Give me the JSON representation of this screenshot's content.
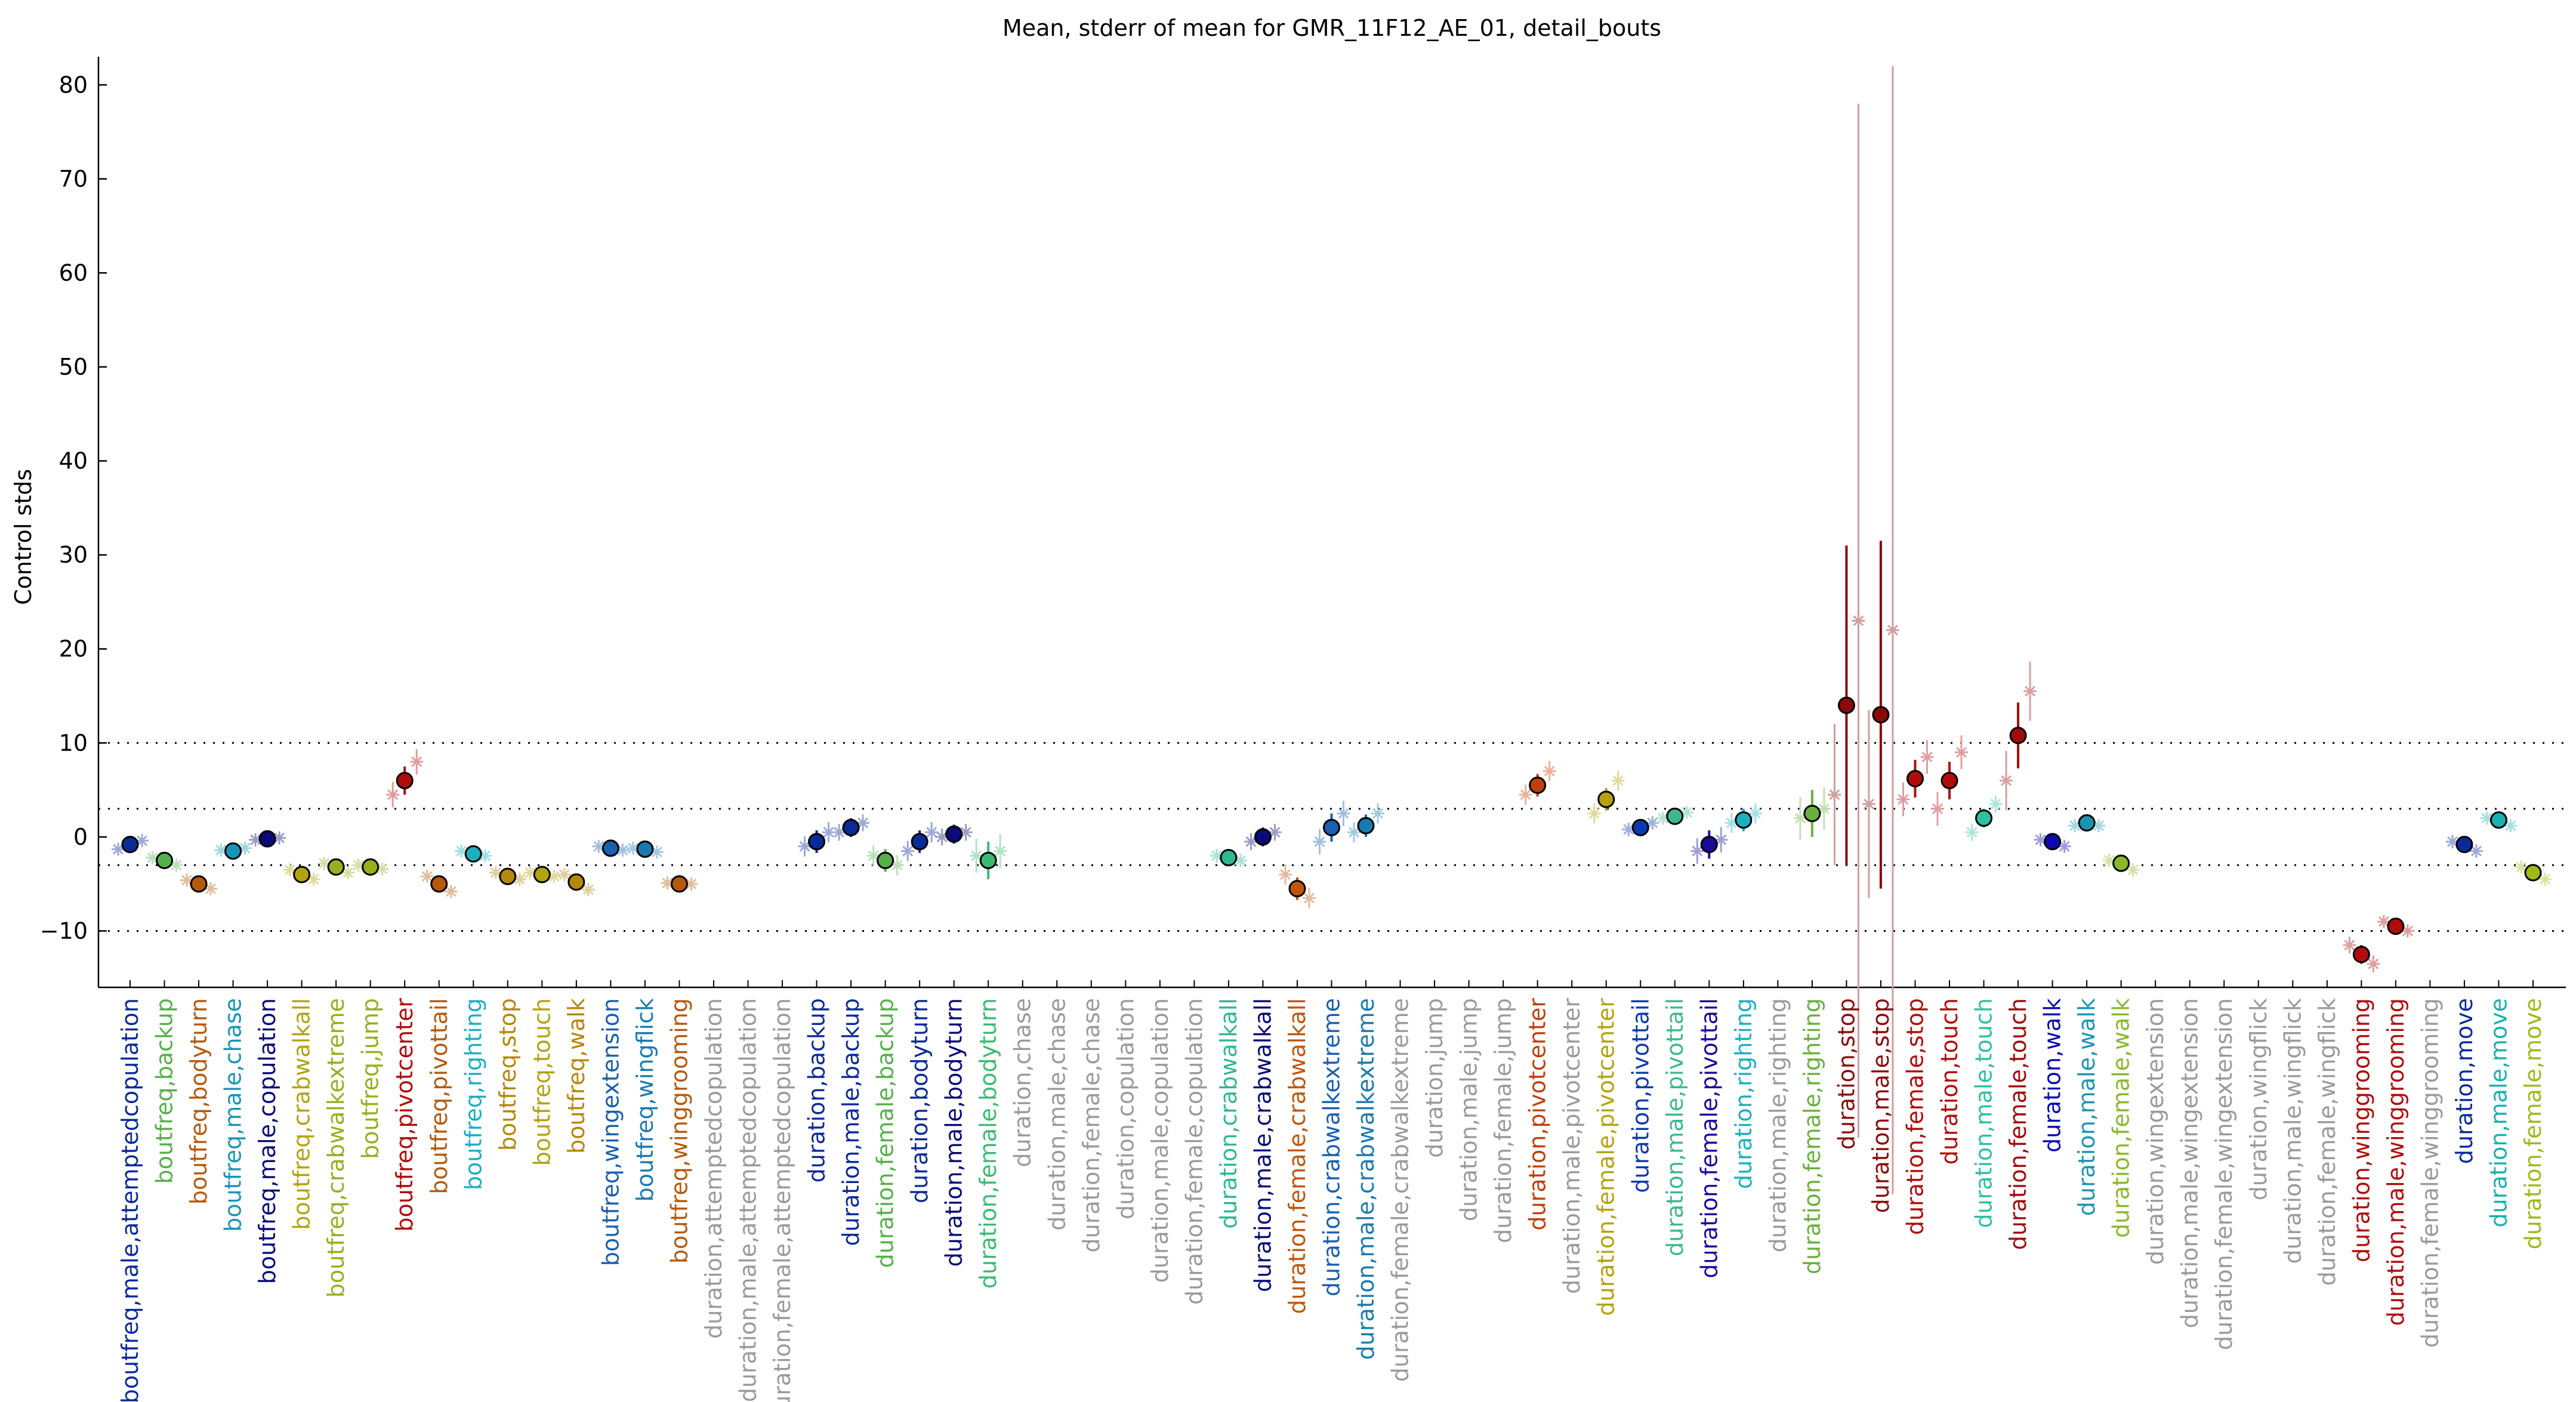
{
  "chart_data": {
    "type": "scatter",
    "title": "Mean, stderr of mean for GMR_11F12_AE_01, detail_bouts",
    "ylabel": "Control stds",
    "xlabel": "",
    "ylim": [
      -16,
      83
    ],
    "yticks": [
      -10,
      0,
      10,
      20,
      30,
      40,
      50,
      60,
      70,
      80
    ],
    "ytick_labels": [
      "−10",
      "0",
      "10",
      "20",
      "30",
      "40",
      "50",
      "60",
      "70",
      "80"
    ],
    "reference_lines": [
      -10,
      -3,
      3,
      10
    ],
    "grid": false,
    "categories": [
      {
        "label": "boutfreq,male,attemptedcopulation",
        "color": "#0b2a9a",
        "value": -0.8,
        "err": 0.5,
        "secondary": [
          -1.3,
          -0.4
        ]
      },
      {
        "label": "boutfreq,backup",
        "color": "#56b04a",
        "value": -2.5,
        "err": 0.5,
        "secondary": [
          -2.2,
          -3.0
        ]
      },
      {
        "label": "boutfreq,bodyturn",
        "color": "#b5590b",
        "value": -5.0,
        "err": 0.5,
        "secondary": [
          -4.6,
          -5.5
        ]
      },
      {
        "label": "boutfreq,male,chase",
        "color": "#1795b8",
        "value": -1.5,
        "err": 0.4,
        "secondary": [
          -1.4,
          -1.2
        ]
      },
      {
        "label": "boutfreq,male,copulation",
        "color": "#0a0a78",
        "value": -0.2,
        "err": 0.4,
        "secondary": [
          -0.3,
          -0.1
        ]
      },
      {
        "label": "boutfreq,crabwalkall",
        "color": "#b3a30f",
        "value": -4.0,
        "err": 0.5,
        "secondary": [
          -3.5,
          -4.5
        ]
      },
      {
        "label": "boutfreq,crabwalkextreme",
        "color": "#9aad1f",
        "value": -3.2,
        "err": 0.5,
        "secondary": [
          -2.8,
          -3.8
        ]
      },
      {
        "label": "boutfreq,jump",
        "color": "#9aad1f",
        "value": -3.2,
        "err": 0.4,
        "secondary": [
          -3.0,
          -3.4
        ]
      },
      {
        "label": "boutfreq,pivotcenter",
        "color": "#b00c0c",
        "value": 6.0,
        "err": 1.5,
        "secondary": [
          4.5,
          8.0
        ]
      },
      {
        "label": "boutfreq,pivottail",
        "color": "#b5590b",
        "value": -5.0,
        "err": 0.6,
        "secondary": [
          -4.2,
          -5.8
        ]
      },
      {
        "label": "boutfreq,righting",
        "color": "#1ab0c0",
        "value": -1.8,
        "err": 0.4,
        "secondary": [
          -1.5,
          -2.0
        ]
      },
      {
        "label": "boutfreq,stop",
        "color": "#b5870b",
        "value": -4.2,
        "err": 0.5,
        "secondary": [
          -3.8,
          -4.5
        ]
      },
      {
        "label": "boutfreq,touch",
        "color": "#b3a30f",
        "value": -4.0,
        "err": 0.4,
        "secondary": [
          -3.8,
          -4.2
        ]
      },
      {
        "label": "boutfreq,walk",
        "color": "#b5870b",
        "value": -4.8,
        "err": 0.6,
        "secondary": [
          -4.0,
          -5.6
        ]
      },
      {
        "label": "boutfreq,wingextension",
        "color": "#1a5fb0",
        "value": -1.2,
        "err": 0.4,
        "secondary": [
          -1.0,
          -1.4
        ]
      },
      {
        "label": "boutfreq,wingflick",
        "color": "#1a7ab0",
        "value": -1.3,
        "err": 0.4,
        "secondary": [
          -1.2,
          -1.6
        ]
      },
      {
        "label": "boutfreq,winggrooming",
        "color": "#b5590b",
        "value": -5.0,
        "err": 0.4,
        "secondary": [
          -4.9,
          -5.0
        ]
      },
      {
        "label": "duration,attemptedcopulation",
        "color": "#9a9a9a",
        "value": null
      },
      {
        "label": "duration,male,attemptedcopulation",
        "color": "#9a9a9a",
        "value": null
      },
      {
        "label": "duration,female,attemptedcopulation",
        "color": "#9a9a9a",
        "value": null
      },
      {
        "label": "duration,backup",
        "color": "#0b2a9a",
        "value": -0.5,
        "err": 1.2,
        "secondary": [
          -1.0,
          0.5
        ]
      },
      {
        "label": "duration,male,backup",
        "color": "#0b2a9a",
        "value": 1.0,
        "err": 1.0,
        "secondary": [
          0.5,
          1.5
        ]
      },
      {
        "label": "duration,female,backup",
        "color": "#56b04a",
        "value": -2.5,
        "err": 1.2,
        "secondary": [
          -2.0,
          -3.0
        ]
      },
      {
        "label": "duration,bodyturn",
        "color": "#0b2a9a",
        "value": -0.5,
        "err": 1.2,
        "secondary": [
          -1.5,
          0.5
        ]
      },
      {
        "label": "duration,male,bodyturn",
        "color": "#0a0a78",
        "value": 0.3,
        "err": 1.0,
        "secondary": [
          0.0,
          0.5
        ]
      },
      {
        "label": "duration,female,bodyturn",
        "color": "#3cba74",
        "value": -2.5,
        "err": 2.0,
        "secondary": [
          -2.0,
          -1.5
        ]
      },
      {
        "label": "duration,chase",
        "color": "#9a9a9a",
        "value": null
      },
      {
        "label": "duration,male,chase",
        "color": "#9a9a9a",
        "value": null
      },
      {
        "label": "duration,female,chase",
        "color": "#9a9a9a",
        "value": null
      },
      {
        "label": "duration,copulation",
        "color": "#9a9a9a",
        "value": null
      },
      {
        "label": "duration,male,copulation",
        "color": "#9a9a9a",
        "value": null
      },
      {
        "label": "duration,female,copulation",
        "color": "#9a9a9a",
        "value": null
      },
      {
        "label": "duration,crabwalkall",
        "color": "#2fb892",
        "value": -2.2,
        "err": 0.8,
        "secondary": [
          -2.0,
          -2.5
        ]
      },
      {
        "label": "duration,male,crabwalkall",
        "color": "#0a0a78",
        "value": 0.0,
        "err": 1.0,
        "secondary": [
          -0.5,
          0.5
        ]
      },
      {
        "label": "duration,female,crabwalkall",
        "color": "#c0560b",
        "value": -5.5,
        "err": 1.2,
        "secondary": [
          -4.0,
          -6.5
        ]
      },
      {
        "label": "duration,crabwalkextreme",
        "color": "#1a5fb0",
        "value": 1.0,
        "err": 1.5,
        "secondary": [
          -0.5,
          2.5
        ]
      },
      {
        "label": "duration,male,crabwalkextreme",
        "color": "#1a7ab0",
        "value": 1.2,
        "err": 1.2,
        "secondary": [
          0.5,
          2.5
        ]
      },
      {
        "label": "duration,female,crabwalkextreme",
        "color": "#9a9a9a",
        "value": null
      },
      {
        "label": "duration,jump",
        "color": "#9a9a9a",
        "value": null
      },
      {
        "label": "duration,male,jump",
        "color": "#9a9a9a",
        "value": null
      },
      {
        "label": "duration,female,jump",
        "color": "#9a9a9a",
        "value": null
      },
      {
        "label": "duration,pivotcenter",
        "color": "#c0400b",
        "value": 5.5,
        "err": 1.2,
        "secondary": [
          4.5,
          7.0
        ]
      },
      {
        "label": "duration,male,pivotcenter",
        "color": "#9a9a9a",
        "value": null
      },
      {
        "label": "duration,female,pivotcenter",
        "color": "#b5a30b",
        "value": 4.0,
        "err": 1.2,
        "secondary": [
          2.5,
          6.0
        ]
      },
      {
        "label": "duration,pivottail",
        "color": "#0b3ab0",
        "value": 1.0,
        "err": 0.8,
        "secondary": [
          0.8,
          1.5
        ]
      },
      {
        "label": "duration,male,pivottail",
        "color": "#3cb890",
        "value": 2.2,
        "err": 0.6,
        "secondary": [
          2.0,
          2.6
        ]
      },
      {
        "label": "duration,female,pivottail",
        "color": "#1a0a9a",
        "value": -0.8,
        "err": 1.5,
        "secondary": [
          -1.5,
          -0.3
        ]
      },
      {
        "label": "duration,righting",
        "color": "#1ab0c0",
        "value": 1.8,
        "err": 1.2,
        "secondary": [
          1.5,
          2.5
        ]
      },
      {
        "label": "duration,male,righting",
        "color": "#9a9a9a",
        "value": null
      },
      {
        "label": "duration,female,righting",
        "color": "#6ab03c",
        "value": 2.5,
        "err": 2.5,
        "secondary": [
          2.0,
          3.0
        ]
      },
      {
        "label": "duration,stop",
        "color": "#8a0a0a",
        "value": 14.0,
        "err": 17.0,
        "secondary": [
          4.5,
          23.0
        ],
        "secondary_err": [
          7.5,
          55.0
        ]
      },
      {
        "label": "duration,male,stop",
        "color": "#8a0a0a",
        "value": 13.0,
        "err": 18.5,
        "secondary": [
          3.5,
          22.0
        ],
        "secondary_err": [
          10.0,
          60.0
        ]
      },
      {
        "label": "duration,female,stop",
        "color": "#b00c0c",
        "value": 6.2,
        "err": 2.0,
        "secondary": [
          4.0,
          8.5
        ]
      },
      {
        "label": "duration,touch",
        "color": "#b00c0c",
        "value": 6.0,
        "err": 2.0,
        "secondary": [
          3.0,
          9.0
        ]
      },
      {
        "label": "duration,male,touch",
        "color": "#2fc0a0",
        "value": 2.0,
        "err": 1.0,
        "secondary": [
          0.5,
          3.5
        ]
      },
      {
        "label": "duration,female,touch",
        "color": "#a00c0c",
        "value": 10.8,
        "err": 3.5,
        "secondary": [
          6.0,
          15.5
        ]
      },
      {
        "label": "duration,walk",
        "color": "#0b0ab0",
        "value": -0.5,
        "err": 0.5,
        "secondary": [
          -0.3,
          -1.0
        ]
      },
      {
        "label": "duration,male,walk",
        "color": "#1a95b0",
        "value": 1.5,
        "err": 0.5,
        "secondary": [
          1.2,
          1.2
        ]
      },
      {
        "label": "duration,female,walk",
        "color": "#8ab82a",
        "value": -2.8,
        "err": 0.8,
        "secondary": [
          -2.5,
          -3.5
        ]
      },
      {
        "label": "duration,wingextension",
        "color": "#9a9a9a",
        "value": null
      },
      {
        "label": "duration,male,wingextension",
        "color": "#9a9a9a",
        "value": null
      },
      {
        "label": "duration,female,wingextension",
        "color": "#9a9a9a",
        "value": null
      },
      {
        "label": "duration,wingflick",
        "color": "#9a9a9a",
        "value": null
      },
      {
        "label": "duration,male,wingflick",
        "color": "#9a9a9a",
        "value": null
      },
      {
        "label": "duration,female,wingflick",
        "color": "#9a9a9a",
        "value": null
      },
      {
        "label": "duration,winggrooming",
        "color": "#b00c0c",
        "value": -12.5,
        "err": 1.0,
        "secondary": [
          -11.5,
          -13.5
        ]
      },
      {
        "label": "duration,male,winggrooming",
        "color": "#b00c0c",
        "value": -9.5,
        "err": 0.6,
        "secondary": [
          -9.0,
          -10.0
        ]
      },
      {
        "label": "duration,female,winggrooming",
        "color": "#9a9a9a",
        "value": null
      },
      {
        "label": "duration,move",
        "color": "#0b2a9a",
        "value": -0.8,
        "err": 0.8,
        "secondary": [
          -0.5,
          -1.5
        ]
      },
      {
        "label": "duration,male,move",
        "color": "#1ab0b0",
        "value": 1.8,
        "err": 0.6,
        "secondary": [
          2.0,
          1.2
        ]
      },
      {
        "label": "duration,female,move",
        "color": "#a0b81a",
        "value": -3.8,
        "err": 0.7,
        "secondary": [
          -3.2,
          -4.5
        ]
      }
    ]
  }
}
